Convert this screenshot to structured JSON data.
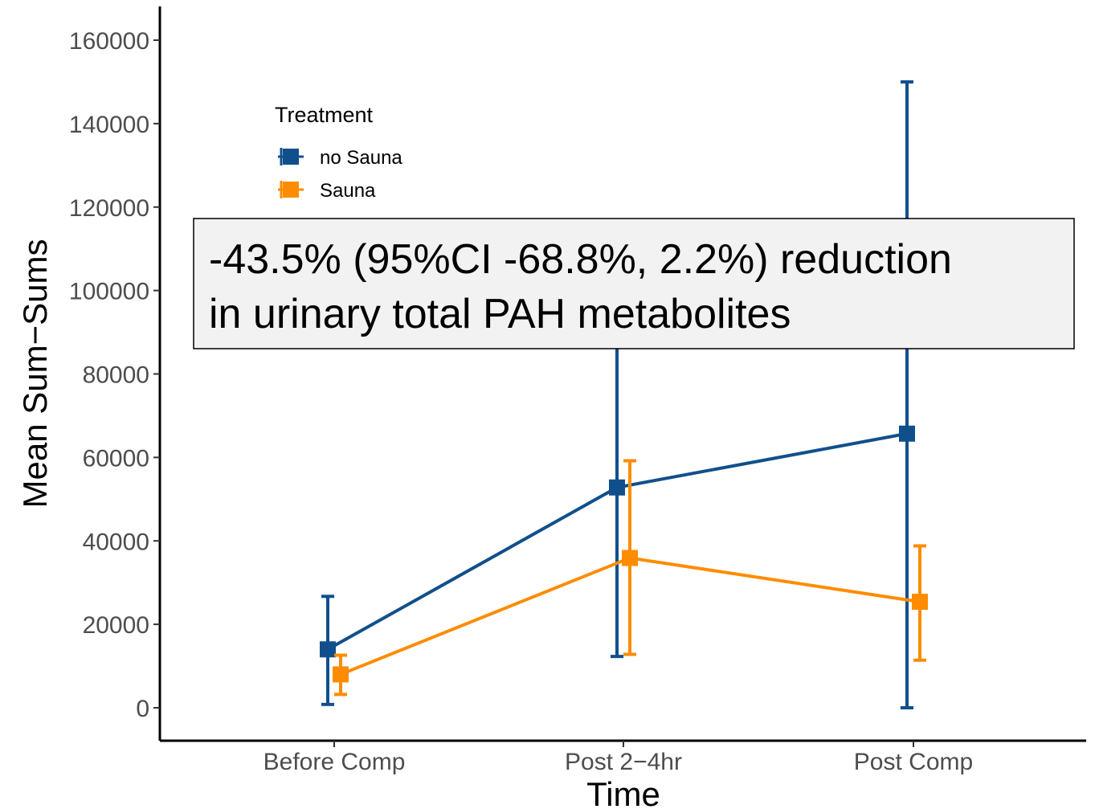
{
  "chart_data": {
    "type": "line",
    "xlabel": "Time",
    "ylabel": "Mean Sum−Sums",
    "categories": [
      "Before Comp",
      "Post 2−4hr",
      "Post Comp"
    ],
    "ylim": [
      -8000,
      168000
    ],
    "yticks": [
      0,
      20000,
      40000,
      60000,
      80000,
      100000,
      120000,
      140000,
      160000
    ],
    "ytick_labels": [
      "0",
      "20000",
      "40000",
      "60000",
      "80000",
      "100000",
      "120000",
      "140000",
      "160000"
    ],
    "grid": false,
    "legend": {
      "title": "Treatment",
      "placement": "top-left"
    },
    "series": [
      {
        "name": "no Sauna",
        "color": "#114f8c",
        "values": [
          14000,
          52800,
          65700
        ],
        "lower": [
          800,
          12300,
          0
        ],
        "upper": [
          26700,
          88000,
          150000
        ]
      },
      {
        "name": "Sauna",
        "color": "#ff8c00",
        "values": [
          8000,
          35900,
          25400
        ],
        "lower": [
          3200,
          12800,
          11400
        ],
        "upper": [
          12600,
          59200,
          38800
        ]
      }
    ],
    "annotation": {
      "lines": [
        "-43.5% (95%CI -68.8%, 2.2%) reduction",
        "in urinary total PAH metabolites"
      ],
      "background": "#f2f2f2"
    }
  }
}
